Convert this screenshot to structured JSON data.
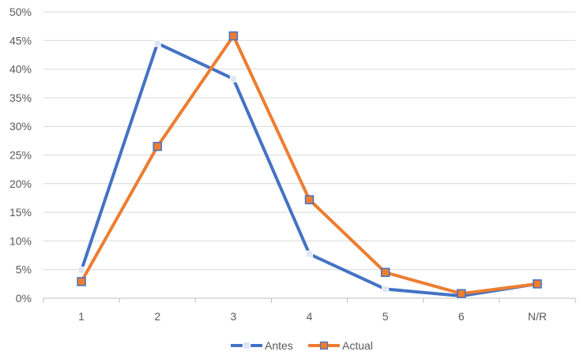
{
  "chart_data": {
    "type": "line",
    "title": "",
    "xlabel": "",
    "ylabel": "",
    "categories": [
      "1",
      "2",
      "3",
      "4",
      "5",
      "6",
      "N/R"
    ],
    "y_axis": {
      "min": 0,
      "max": 50,
      "step": 5,
      "tick_labels": [
        "0%",
        "5%",
        "10%",
        "15%",
        "20%",
        "25%",
        "30%",
        "35%",
        "40%",
        "45%",
        "50%"
      ]
    },
    "grid": true,
    "legend_position": "bottom",
    "series": [
      {
        "name": "Antes",
        "color": "#4472C4",
        "values": [
          4.9,
          44.5,
          38.3,
          7.7,
          1.6,
          0.4,
          2.5
        ]
      },
      {
        "name": "Actual",
        "color": "#ED7D31",
        "values": [
          2.9,
          26.5,
          45.8,
          17.2,
          4.5,
          0.8,
          2.5
        ]
      }
    ]
  }
}
